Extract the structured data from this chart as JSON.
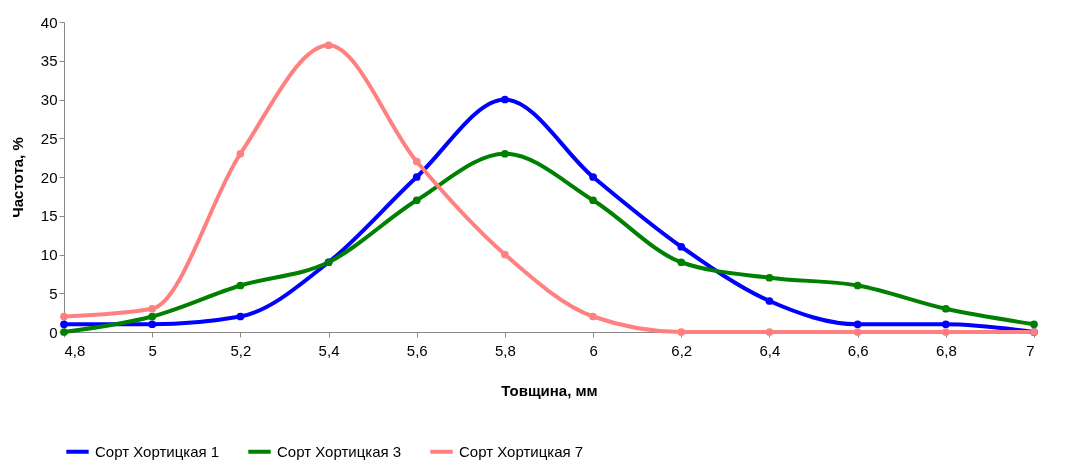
{
  "chart_data": {
    "type": "line",
    "xlabel": "Товщина, мм",
    "ylabel": "Частота, %",
    "x": [
      4.8,
      5,
      5.2,
      5.4,
      5.6,
      5.8,
      6,
      6.2,
      6.4,
      6.6,
      6.8,
      7
    ],
    "series": [
      {
        "name": "Сорт Хортицкая 1",
        "color": "#0000ff",
        "values": [
          1,
          1,
          2,
          9,
          20,
          30,
          20,
          11,
          4,
          1,
          1,
          0
        ]
      },
      {
        "name": "Сорт Хортицкая 3",
        "color": "#008000",
        "values": [
          0,
          2,
          6,
          9,
          17,
          23,
          17,
          9,
          7,
          6,
          3,
          1
        ]
      },
      {
        "name": "Сорт Хортицкая 7",
        "color": "#ff8080",
        "values": [
          2,
          3,
          23,
          37,
          22,
          10,
          2,
          0,
          0,
          0,
          0,
          0
        ]
      }
    ],
    "xlim": [
      4.8,
      7
    ],
    "xticks": [
      {
        "value": 4.8,
        "label": "4,8"
      },
      5,
      {
        "value": 5.2,
        "label": "5,2"
      },
      {
        "value": 5.4,
        "label": "5,4"
      },
      {
        "value": 5.6,
        "label": "5,6"
      },
      {
        "value": 5.8,
        "label": "5,8"
      },
      6,
      {
        "value": 6.2,
        "label": "6,2"
      },
      {
        "value": 6.4,
        "label": "6,4"
      },
      {
        "value": 6.6,
        "label": "6,6"
      },
      {
        "value": 6.8,
        "label": "6,8"
      },
      7
    ],
    "ylim": [
      0,
      40
    ],
    "yticks": [
      0,
      5,
      10,
      15,
      20,
      25,
      30,
      35,
      40
    ],
    "grid": false,
    "legend": "bottom",
    "marker": "circle",
    "line_style": "solid"
  }
}
